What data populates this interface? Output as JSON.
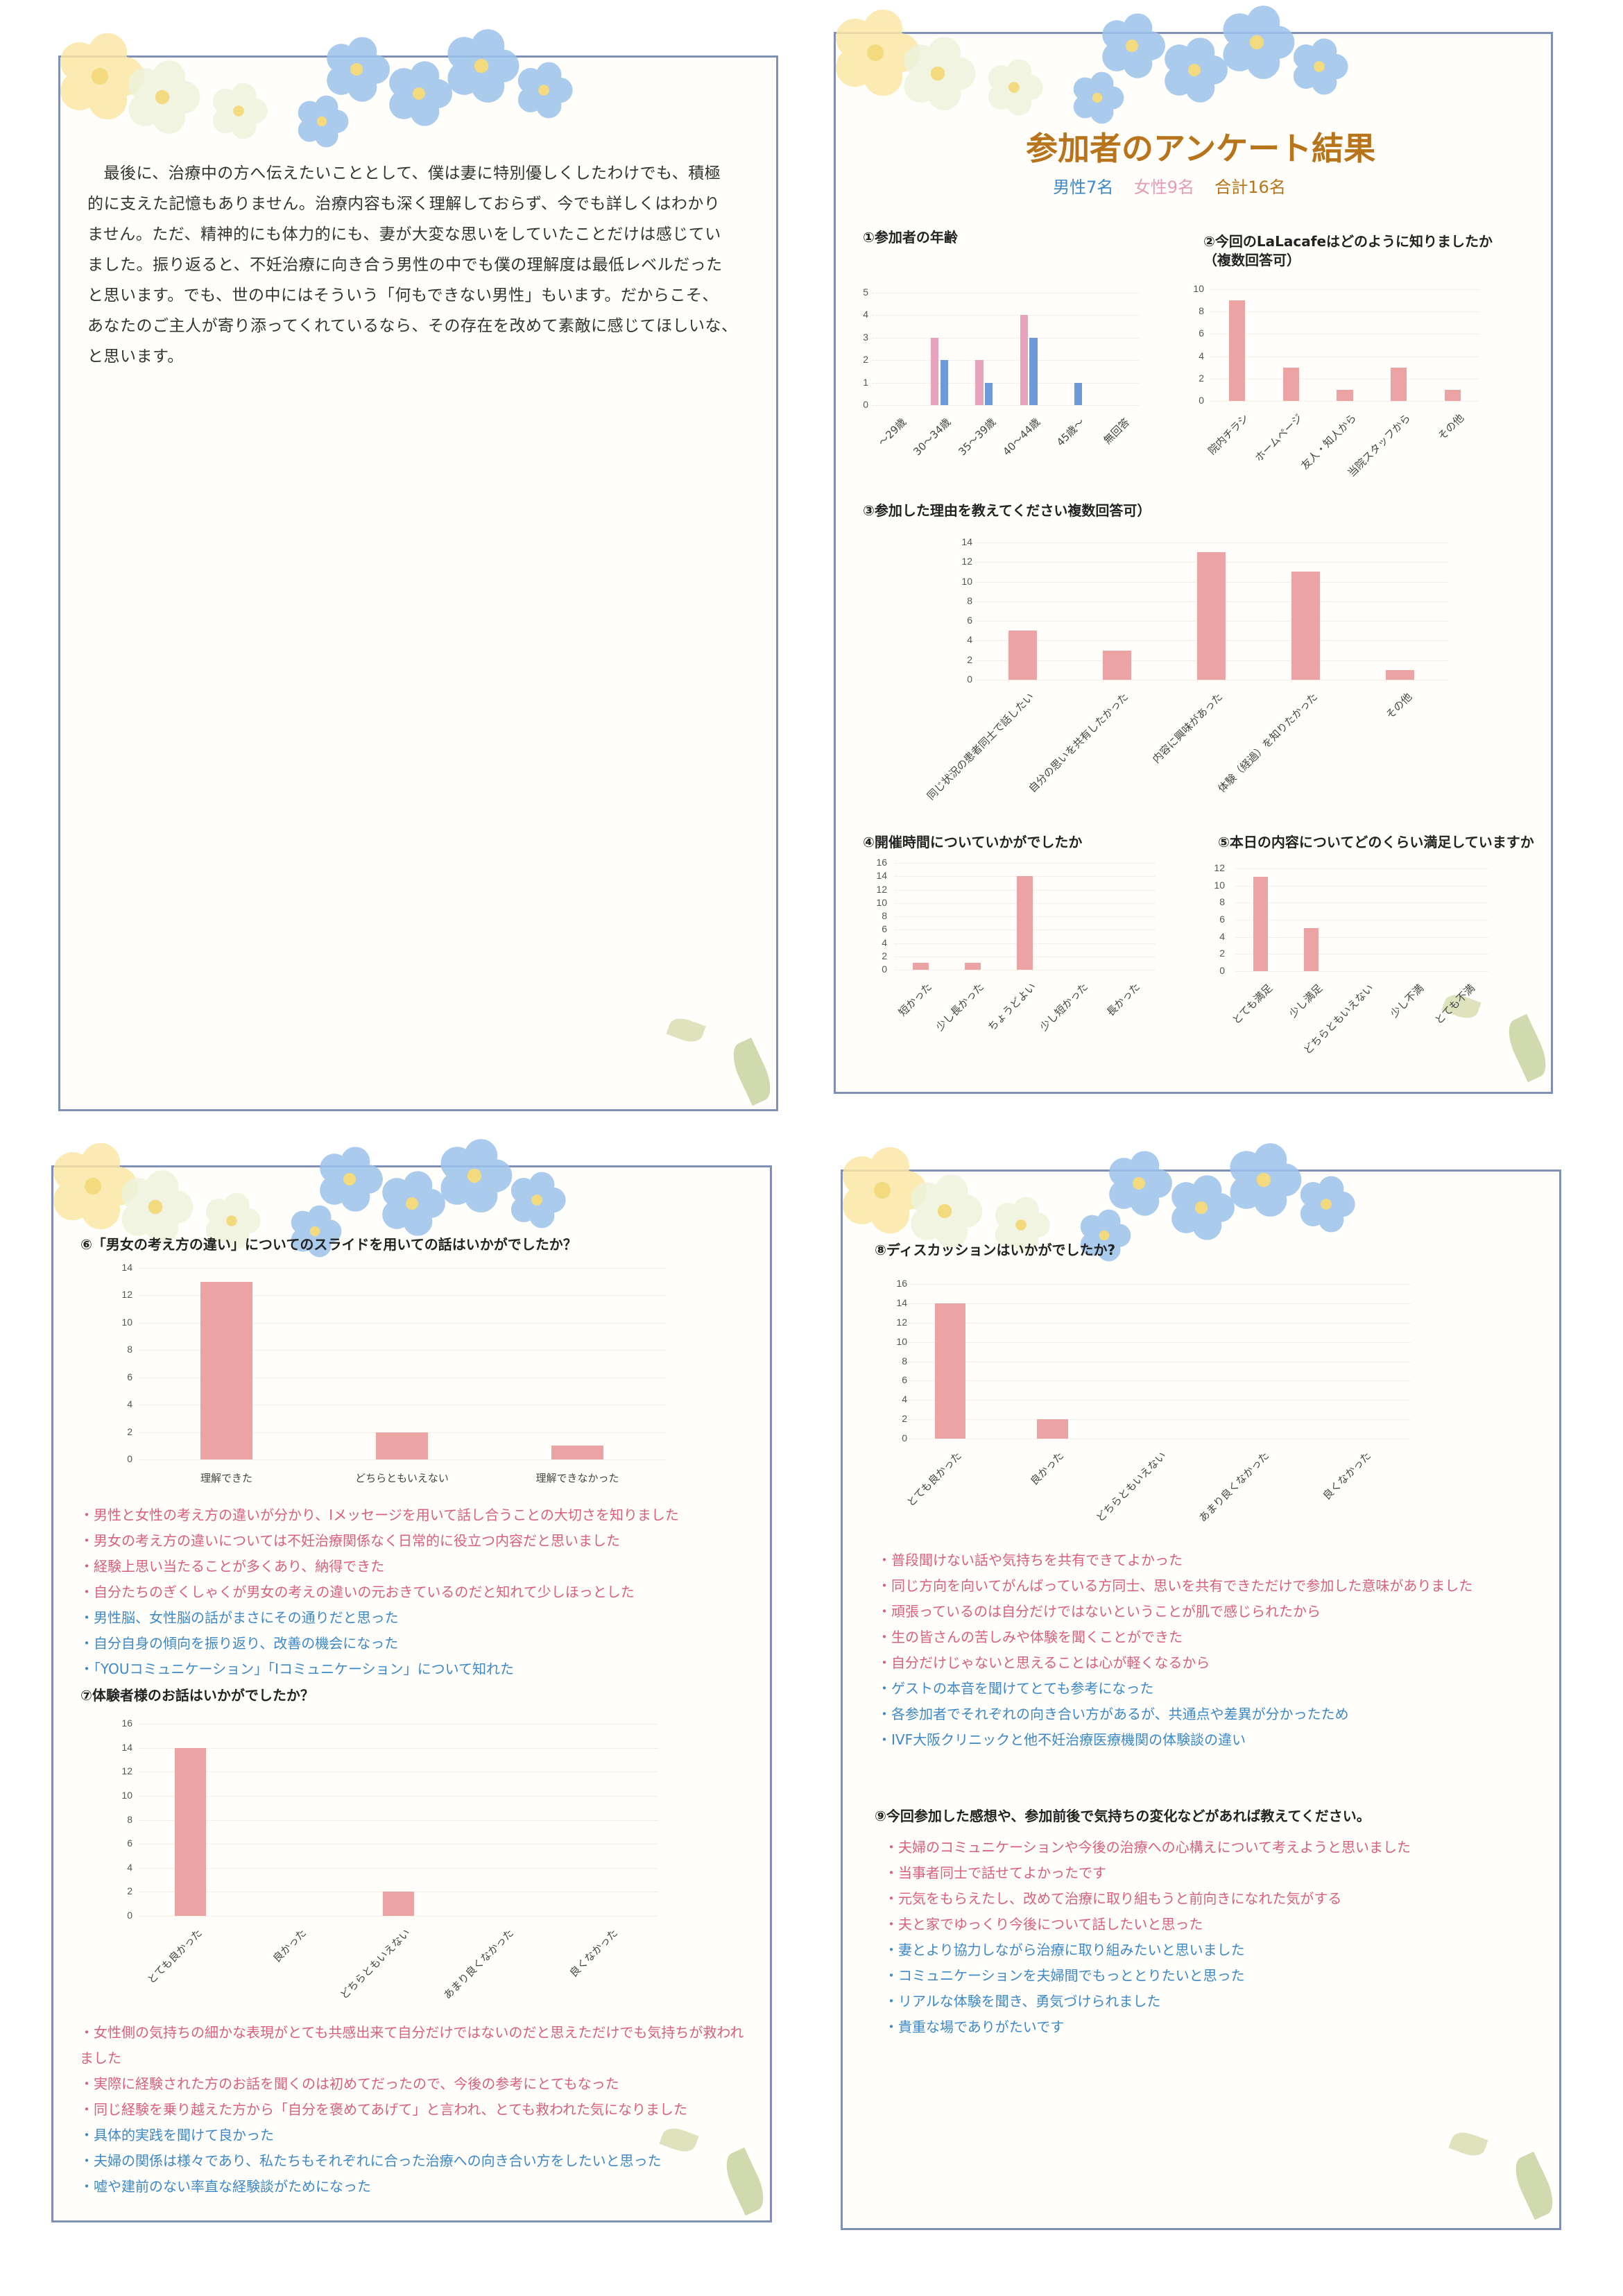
{
  "page1": {
    "lines": [
      "　最後に、治療中の方へ伝えたいこととして、僕は妻に特別優しくしたわけでも、積極",
      "的に支えた記憶もありません。治療内容も深く理解しておらず、今でも詳しくはわかり",
      "ません。ただ、精神的にも体力的にも、妻が大変な思いをしていたことだけは感じてい",
      "ました。振り返ると、不妊治療に向き合う男性の中でも僕の理解度は最低レベルだった",
      "と思います。でも、世の中にはそういう「何もできない男性」もいます。だからこそ、",
      "あなたのご主人が寄り添ってくれているなら、その存在を改めて素敵に感じてほしいな、",
      "と思います。"
    ]
  },
  "page2": {
    "title": "参加者のアンケート結果",
    "male": "男性7名",
    "female": "女性9名",
    "total": "合計16名",
    "colors": {
      "title": "#b8741a",
      "male": "#3d88c6",
      "female": "#e59bb8",
      "total": "#b8741a"
    }
  },
  "colors": {
    "bar": "#eba3a3",
    "women": "#e9a2bc",
    "men": "#6e9ad8",
    "pink_text": "#d8607c",
    "blue_text": "#3d88c6",
    "frame": "#7f8fb5"
  },
  "chart_data": [
    {
      "type": "bar",
      "title": "①参加者の年齢",
      "categories": [
        "～29歳",
        "30～34歳",
        "35～39歳",
        "40～44歳",
        "45歳～",
        "無回答"
      ],
      "series": [
        {
          "color": "#e9a2bc",
          "values": [
            0,
            3,
            2,
            4,
            0,
            0
          ]
        },
        {
          "color": "#6e9ad8",
          "values": [
            0,
            2,
            1,
            3,
            1,
            0
          ]
        }
      ],
      "ylim": [
        0,
        5
      ],
      "yticks": [
        0,
        1,
        2,
        3,
        4,
        5
      ],
      "grid": true
    },
    {
      "type": "bar",
      "title": "②今回のLaLacafeはどのように知りましたか",
      "subtitle": "（複数回答可）",
      "categories": [
        "院内チラシ",
        "ホームページ",
        "友人・知人から",
        "当院スタッフから",
        "その他"
      ],
      "values": [
        9,
        3,
        1,
        3,
        1
      ],
      "ylim": [
        0,
        10
      ],
      "yticks": [
        0,
        2,
        4,
        6,
        8,
        10
      ],
      "grid": true
    },
    {
      "type": "bar",
      "title": "③参加した理由を教えてください複数回答可）",
      "categories": [
        "同じ状況の患者同士で話したい",
        "自分の思いを共有したかった",
        "内容に興味があった",
        "体験（経過）を知りたかった",
        "その他"
      ],
      "values": [
        5,
        3,
        13,
        11,
        1
      ],
      "ylim": [
        0,
        14
      ],
      "yticks": [
        0,
        2,
        4,
        6,
        8,
        10,
        12,
        14
      ],
      "grid": true
    },
    {
      "type": "bar",
      "title": "④開催時間についていかがでしたか",
      "categories": [
        "短かった",
        "少し長かった",
        "ちょうどよい",
        "少し短かった",
        "長かった"
      ],
      "values": [
        1,
        1,
        14,
        0,
        0
      ],
      "ylim": [
        0,
        16
      ],
      "yticks": [
        0,
        2,
        4,
        6,
        8,
        10,
        12,
        14,
        16
      ],
      "grid": true
    },
    {
      "type": "bar",
      "title": "⑤本日の内容についてどのくらい満足していますか",
      "categories": [
        "とても満足",
        "少し満足",
        "どちらともいえない",
        "少し不満",
        "とても不満"
      ],
      "values": [
        11,
        5,
        0,
        0,
        0
      ],
      "ylim": [
        0,
        12
      ],
      "yticks": [
        0,
        2,
        4,
        6,
        8,
        10,
        12
      ],
      "grid": true
    },
    {
      "type": "bar",
      "title": "⑥「男女の考え方の違い」についてのスライドを用いての話はいかがでしたか？",
      "categories": [
        "理解できた",
        "どちらともいえない",
        "理解できなかった"
      ],
      "values": [
        13,
        2,
        1
      ],
      "ylim": [
        0,
        14
      ],
      "yticks": [
        0,
        2,
        4,
        6,
        8,
        10,
        12,
        14
      ],
      "grid": true
    },
    {
      "type": "bar",
      "title": "⑦体験者様のお話はいかがでしたか？",
      "categories": [
        "とても良かった",
        "良かった",
        "どちらともいえない",
        "あまり良くなかった",
        "良くなかった"
      ],
      "values": [
        14,
        0,
        2,
        0,
        0
      ],
      "ylim": [
        0,
        16
      ],
      "yticks": [
        0,
        2,
        4,
        6,
        8,
        10,
        12,
        14,
        16
      ],
      "grid": true
    },
    {
      "type": "bar",
      "title": "⑧ディスカッションはいかがでしたか?",
      "categories": [
        "とても良かった",
        "良かった",
        "どちらともいえない",
        "あまり良くなかった",
        "良くなかった"
      ],
      "values": [
        14,
        2,
        0,
        0,
        0
      ],
      "ylim": [
        0,
        16
      ],
      "yticks": [
        0,
        2,
        4,
        6,
        8,
        10,
        12,
        14,
        16
      ],
      "grid": true
    }
  ],
  "comments": {
    "q6": [
      {
        "text": "・男性と女性の考え方の違いが分かり、Iメッセージを用いて話し合うことの大切さを知りました",
        "tone": "pink"
      },
      {
        "text": "・男女の考え方の違いについては不妊治療関係なく日常的に役立つ内容だと思いました",
        "tone": "pink"
      },
      {
        "text": "・経験上思い当たることが多くあり、納得できた",
        "tone": "pink"
      },
      {
        "text": "・自分たちのぎくしゃくが男女の考えの違いの元おきているのだと知れて少しほっとした",
        "tone": "pink"
      },
      {
        "text": "・男性脳、女性脳の話がまさにその通りだと思った",
        "tone": "blue"
      },
      {
        "text": "・自分自身の傾向を振り返り、改善の機会になった",
        "tone": "blue"
      },
      {
        "text": "・「YOUコミュニケーション」「Iコミュニケーション」について知れた",
        "tone": "blue"
      }
    ],
    "q7": [
      {
        "text": "・女性側の気持ちの細かな表現がとても共感出来て自分だけではないのだと思えただけでも気持ちが救われました",
        "tone": "pink"
      },
      {
        "text": "・実際に経験された方のお話を聞くのは初めてだったので、今後の参考にとてもなった",
        "tone": "pink"
      },
      {
        "text": "・同じ経験を乗り越えた方から「自分を褒めてあげて」と言われ、とても救われた気になりました",
        "tone": "pink"
      },
      {
        "text": "・具体的実践を聞けて良かった",
        "tone": "blue"
      },
      {
        "text": "・夫婦の関係は様々であり、私たちもそれぞれに合った治療への向き合い方をしたいと思った",
        "tone": "blue"
      },
      {
        "text": "・嘘や建前のない率直な経験談がためになった",
        "tone": "blue"
      }
    ],
    "q8": [
      {
        "text": "・普段聞けない話や気持ちを共有できてよかった",
        "tone": "pink"
      },
      {
        "text": "・同じ方向を向いてがんばっている方同士、思いを共有できただけで参加した意味がありました",
        "tone": "pink"
      },
      {
        "text": "・頑張っているのは自分だけではないということが肌で感じられたから",
        "tone": "pink"
      },
      {
        "text": "・生の皆さんの苦しみや体験を聞くことができた",
        "tone": "pink"
      },
      {
        "text": "・自分だけじゃないと思えることは心が軽くなるから",
        "tone": "pink"
      },
      {
        "text": "・ゲストの本音を聞けてとても参考になった",
        "tone": "blue"
      },
      {
        "text": "・各参加者でそれぞれの向き合い方があるが、共通点や差異が分かったため",
        "tone": "blue"
      },
      {
        "text": "・IVF大阪クリニックと他不妊治療医療機関の体験談の違い",
        "tone": "blue"
      }
    ],
    "q9_title": "⑨今回参加した感想や、参加前後で気持ちの変化などがあれば教えてください。",
    "q9": [
      {
        "text": "・夫婦のコミュニケーションや今後の治療への心構えについて考えようと思いました",
        "tone": "pink"
      },
      {
        "text": "・当事者同士で話せてよかったです",
        "tone": "pink"
      },
      {
        "text": "・元気をもらえたし、改めて治療に取り組もうと前向きになれた気がする",
        "tone": "pink"
      },
      {
        "text": "・夫と家でゆっくり今後について話したいと思った",
        "tone": "pink"
      },
      {
        "text": "・妻とより協力しながら治療に取り組みたいと思いました",
        "tone": "blue"
      },
      {
        "text": "・コミュニケーションを夫婦間でもっととりたいと思った",
        "tone": "blue"
      },
      {
        "text": "・リアルな体験を聞き、勇気づけられました",
        "tone": "blue"
      },
      {
        "text": "・貴重な場でありがたいです",
        "tone": "blue"
      }
    ]
  }
}
